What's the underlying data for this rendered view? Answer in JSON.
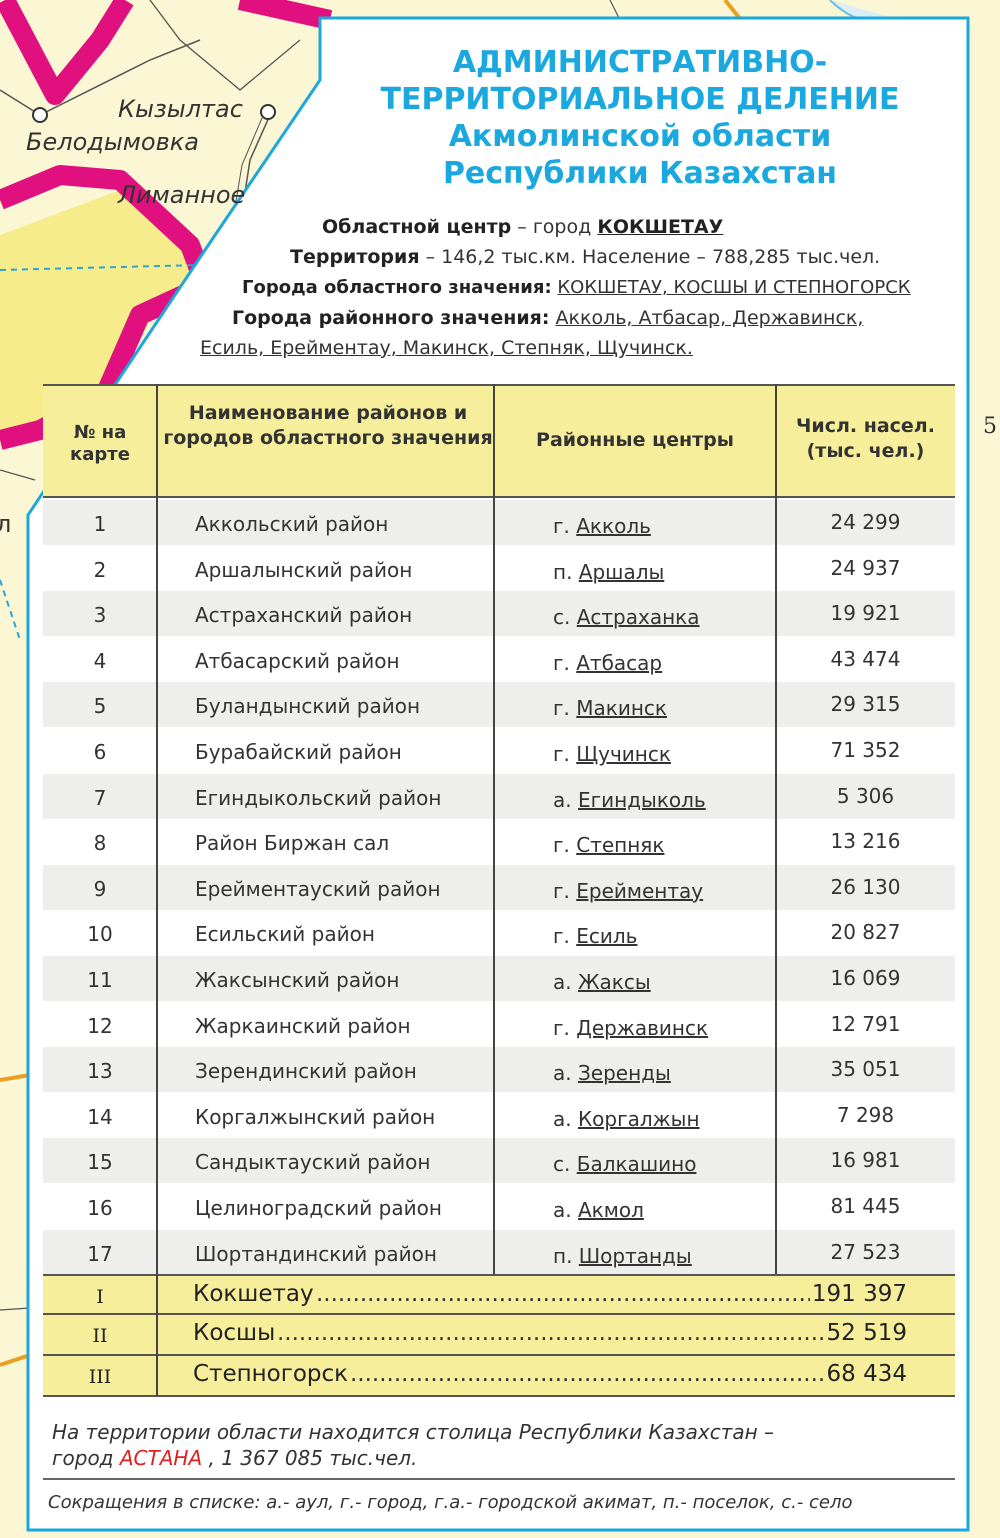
{
  "map_labels": {
    "kyzyltas": "Кызылтас",
    "belodymovka": "Белодымовка",
    "limannoe": "Лиманное",
    "edge_left": "л",
    "edge_right": "5"
  },
  "title": {
    "line1": "АДМИНИСТРАТИВНО-",
    "line2": "ТЕРРИТОРИАЛЬНОЕ ДЕЛЕНИЕ",
    "line3": "Акмолинской области",
    "line4": "Республики Казахстан"
  },
  "info": {
    "center_label": "Областной центр",
    "center_text": " – город ",
    "center_city": "КОКШЕТАУ",
    "territory_label": "Территория",
    "territory_text": " – 146,2 тыс.км. Население – 788,285 тыс.чел.",
    "oblast_cities_label": "Города областного значения:",
    "oblast_cities": "КОКШЕТАУ, КОСШЫ И СТЕПНОГОРСК",
    "district_cities_label": "Города  районного значения:",
    "district_cities_1": "Акколь, Атбасар, Державинск,",
    "district_cities_2": "Есиль, Ерейментау, Макинск, Степняк, Щучинск."
  },
  "table": {
    "headers": {
      "num": "№ на карте",
      "name": "Наименование районов и городов областного значения",
      "center": "Районные центры",
      "pop": "Числ. насел. (тыс. чел.)"
    },
    "rows": [
      {
        "n": "1",
        "name": "Аккольский район",
        "pre": "г.",
        "center": "Акколь",
        "pop": "24 299"
      },
      {
        "n": "2",
        "name": "Аршалынский район",
        "pre": "п.",
        "center": "Аршалы",
        "pop": "24 937"
      },
      {
        "n": "3",
        "name": "Астраханский район",
        "pre": "с.",
        "center": "Астраханка",
        "pop": "19 921"
      },
      {
        "n": "4",
        "name": "Атбасарский район",
        "pre": "г.",
        "center": "Атбасар",
        "pop": "43 474"
      },
      {
        "n": "5",
        "name": "Буландынский район",
        "pre": "г.",
        "center": "Макинск",
        "pop": "29 315"
      },
      {
        "n": "6",
        "name": "Бурабайский район",
        "pre": "г.",
        "center": "Щучинск",
        "pop": "71 352"
      },
      {
        "n": "7",
        "name": "Егиндыкольский район",
        "pre": "а.",
        "center": "Егиндыколь",
        "pop": "5 306"
      },
      {
        "n": "8",
        "name": "Район Биржан сал",
        "pre": "г.",
        "center": "Степняк",
        "pop": "13 216"
      },
      {
        "n": "9",
        "name": "Ерейментауский район",
        "pre": "г.",
        "center": "Ерейментау",
        "pop": "26 130"
      },
      {
        "n": "10",
        "name": "Есильский район",
        "pre": "г.",
        "center": "Есиль",
        "pop": "20 827"
      },
      {
        "n": "11",
        "name": "Жаксынский район",
        "pre": "а.",
        "center": "Жаксы",
        "pop": "16 069"
      },
      {
        "n": "12",
        "name": "Жаркаинский район",
        "pre": "г.",
        "center": "Державинск",
        "pop": "12 791"
      },
      {
        "n": "13",
        "name": "Зерендинский район",
        "pre": "а.",
        "center": "Зеренды",
        "pop": "35 051"
      },
      {
        "n": "14",
        "name": "Коргалжынский район",
        "pre": "а.",
        "center": "Коргалжын",
        "pop": "7 298"
      },
      {
        "n": "15",
        "name": "Сандыктауский район",
        "pre": "с.",
        "center": "Балкашино",
        "pop": "16 981"
      },
      {
        "n": "16",
        "name": "Целиноградский район",
        "pre": "а.",
        "center": "Акмол",
        "pop": "81 445"
      },
      {
        "n": "17",
        "name": "Шортандинский район",
        "pre": "п.",
        "center": "Шортанды",
        "pop": "27 523"
      }
    ],
    "cities": [
      {
        "n": "I",
        "name": "Кокшетау",
        "pop": "191 397"
      },
      {
        "n": "II",
        "name": "Косшы",
        "pop": "52 519"
      },
      {
        "n": "III",
        "name": "Степногорск",
        "pop": "68 434"
      }
    ]
  },
  "notes": {
    "capital_1": "На территории области находится столица Республики Казахстан –",
    "capital_2a": "город ",
    "capital_city": "АСТАНА",
    "capital_2b": " , 1 367 085 тыс.чел.",
    "abbreviations": "Сокращения в списке: а.- аул, г.- город, г.а.- городской акимат, п.- поселок, с.- село"
  },
  "colors": {
    "border_magenta": "#e0117f",
    "panel_frame": "#1aa8de",
    "header_fill": "#f6ee9a",
    "map_fill": "#fbf6d3",
    "title_blue": "#1aa8de",
    "capital_red": "#e02020"
  }
}
